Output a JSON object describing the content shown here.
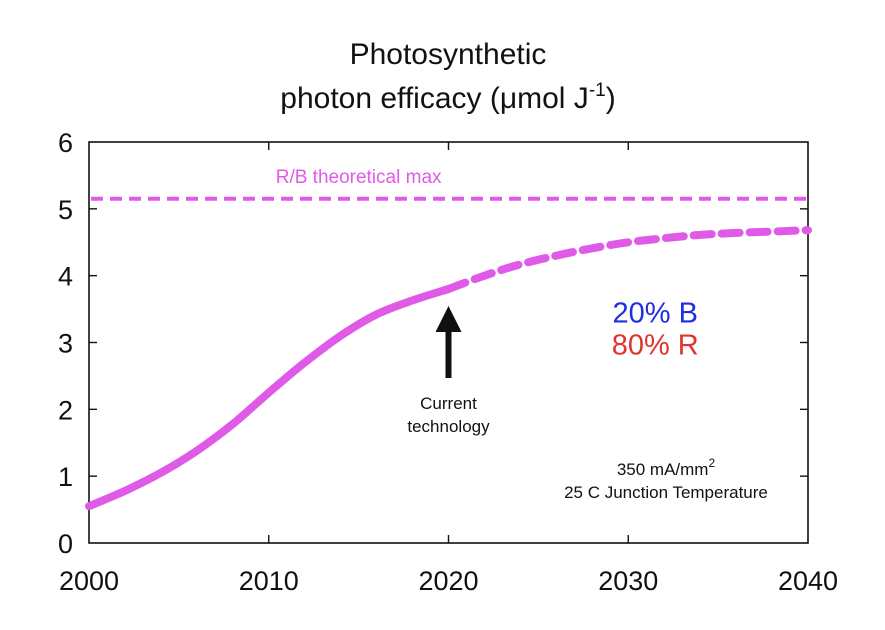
{
  "chart_data": {
    "type": "line",
    "title_line1": "Photosynthetic",
    "title_line2_main": "photon efficacy (μmol J",
    "title_line2_sup": "-1",
    "title_line2_end": ")",
    "xlabel": "",
    "ylabel": "",
    "xlim": [
      2000,
      2040
    ],
    "ylim": [
      0,
      6
    ],
    "x_ticks": [
      "2000",
      "2010",
      "2020",
      "2030",
      "2040"
    ],
    "y_ticks": [
      "0",
      "1",
      "2",
      "3",
      "4",
      "5",
      "6"
    ],
    "grid": false,
    "series": [
      {
        "style": "solid",
        "color": "#e05ae8",
        "x": [
          2000,
          2002,
          2004,
          2006,
          2008,
          2010,
          2012,
          2014,
          2016,
          2018,
          2020
        ],
        "y": [
          0.55,
          0.78,
          1.05,
          1.38,
          1.78,
          2.25,
          2.7,
          3.1,
          3.42,
          3.63,
          3.8
        ]
      },
      {
        "style": "dashed",
        "color": "#e05ae8",
        "x": [
          2020,
          2022,
          2024,
          2026,
          2028,
          2030,
          2032,
          2034,
          2036,
          2038,
          2040
        ],
        "y": [
          3.8,
          4.0,
          4.17,
          4.3,
          4.41,
          4.5,
          4.56,
          4.61,
          4.64,
          4.66,
          4.68
        ]
      }
    ],
    "reference_line": {
      "label": "R/B theoretical max",
      "y": 5.15,
      "color": "#e05ae8",
      "style": "dashed"
    },
    "annotations": {
      "arrow_x": 2020,
      "current_line1": "Current",
      "current_line2": "technology",
      "blue_label": "20% B",
      "blue_color": "#1f2ee0",
      "red_label": "80% R",
      "red_color": "#e0342f",
      "cond_line1_main": "350 mA/mm",
      "cond_line1_sup": "2",
      "cond_line2": "25 C Junction Temperature"
    }
  }
}
